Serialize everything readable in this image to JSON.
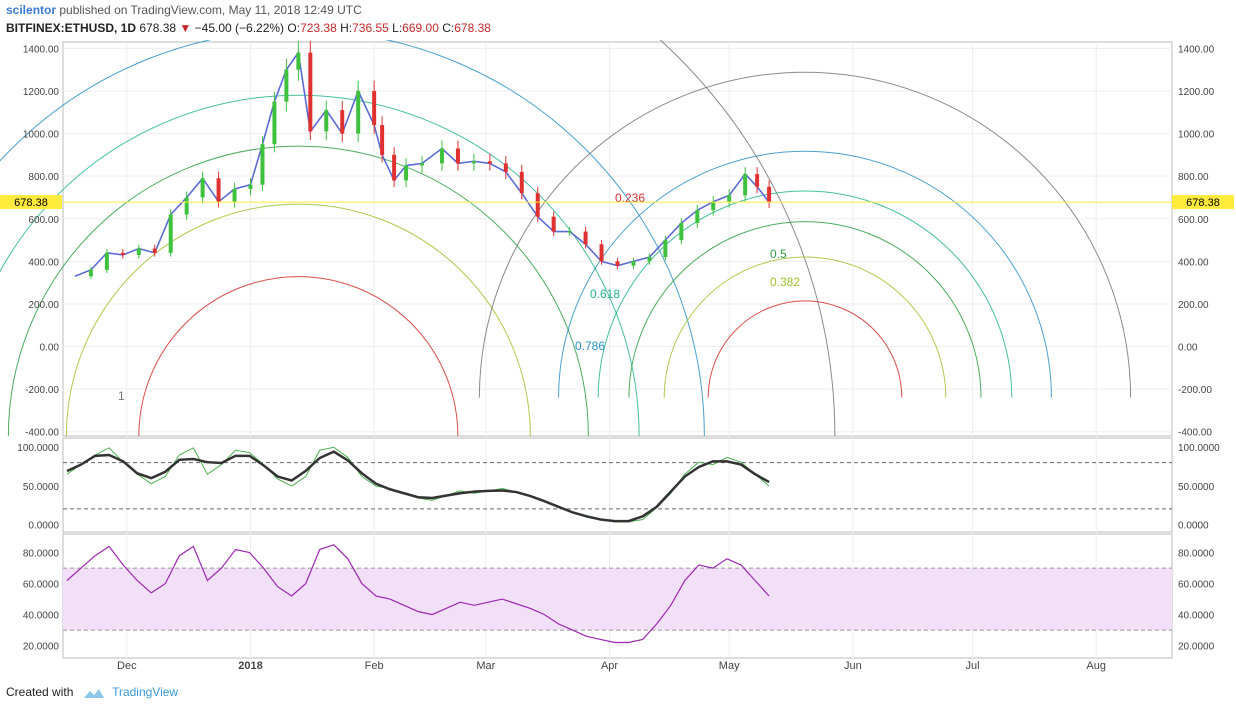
{
  "header": {
    "author": "scilentor",
    "published": "published on TradingView.com, May 11, 2018 12:49 UTC",
    "symbol": "BITFINEX:ETHUSD, 1D",
    "last": "678.38",
    "change": "−45.00 (−6.22%)",
    "o_label": "O:",
    "o": "723.38",
    "h_label": "H:",
    "h": "736.55",
    "l_label": "L:",
    "l": "669.00",
    "c_label": "C:",
    "c": "678.38"
  },
  "footer": {
    "created_with": "Created with",
    "brand": "TradingView"
  },
  "colors": {
    "up": "#3ec23e",
    "down": "#e03131",
    "price_line": "#ffeb3b",
    "rsi": "#9c27b0",
    "stoch_fast": "#4caf50",
    "stoch_slow": "#333333"
  },
  "chart_data": [
    {
      "type": "candlestick",
      "panel": "price",
      "ylim": [
        -420,
        1430
      ],
      "y_ticks": [
        "1400.00",
        "1200.00",
        "1000.00",
        "800.00",
        "600.00",
        "400.00",
        "200.00",
        "0.00",
        "-200.00",
        "-400.00"
      ],
      "x_ticks": [
        "Dec",
        "2018",
        "Feb",
        "Mar",
        "Apr",
        "May",
        "Jun",
        "Jul",
        "Aug"
      ],
      "current_price_label": "678.38",
      "price_series": [
        [
          "2017-11-18",
          330
        ],
        [
          "2017-11-22",
          360
        ],
        [
          "2017-11-26",
          440
        ],
        [
          "2017-11-30",
          430
        ],
        [
          "2017-12-04",
          460
        ],
        [
          "2017-12-08",
          440
        ],
        [
          "2017-12-12",
          620
        ],
        [
          "2017-12-16",
          700
        ],
        [
          "2017-12-20",
          790
        ],
        [
          "2017-12-24",
          680
        ],
        [
          "2017-12-28",
          740
        ],
        [
          "2018-01-01",
          760
        ],
        [
          "2018-01-04",
          950
        ],
        [
          "2018-01-07",
          1150
        ],
        [
          "2018-01-10",
          1300
        ],
        [
          "2018-01-13",
          1380
        ],
        [
          "2018-01-16",
          1010
        ],
        [
          "2018-01-20",
          1110
        ],
        [
          "2018-01-24",
          1000
        ],
        [
          "2018-01-28",
          1200
        ],
        [
          "2018-02-01",
          1040
        ],
        [
          "2018-02-03",
          900
        ],
        [
          "2018-02-06",
          780
        ],
        [
          "2018-02-09",
          850
        ],
        [
          "2018-02-13",
          860
        ],
        [
          "2018-02-18",
          930
        ],
        [
          "2018-02-22",
          860
        ],
        [
          "2018-02-26",
          870
        ],
        [
          "2018-03-02",
          860
        ],
        [
          "2018-03-06",
          820
        ],
        [
          "2018-03-10",
          720
        ],
        [
          "2018-03-14",
          610
        ],
        [
          "2018-03-18",
          540
        ],
        [
          "2018-03-22",
          540
        ],
        [
          "2018-03-26",
          480
        ],
        [
          "2018-03-30",
          400
        ],
        [
          "2018-04-03",
          380
        ],
        [
          "2018-04-07",
          400
        ],
        [
          "2018-04-11",
          420
        ],
        [
          "2018-04-15",
          500
        ],
        [
          "2018-04-19",
          580
        ],
        [
          "2018-04-23",
          640
        ],
        [
          "2018-04-27",
          680
        ],
        [
          "2018-05-01",
          710
        ],
        [
          "2018-05-05",
          810
        ],
        [
          "2018-05-08",
          750
        ],
        [
          "2018-05-11",
          678
        ]
      ],
      "fib_labels": [
        {
          "text": "0.236",
          "color": "#d32f2f"
        },
        {
          "text": "0.382",
          "color": "#9dc22f"
        },
        {
          "text": "0.5",
          "color": "#2e9e45"
        },
        {
          "text": "0.618",
          "color": "#26b58a"
        },
        {
          "text": "0.786",
          "color": "#2a8fc6"
        },
        {
          "text": "1",
          "color": "#777777"
        }
      ]
    },
    {
      "type": "line",
      "panel": "stochastic",
      "ylim": [
        -10,
        112
      ],
      "y_ticks": [
        "100.0000",
        "50.0000",
        "0.0000"
      ],
      "levels": [
        80,
        20
      ]
    },
    {
      "type": "line",
      "panel": "rsi",
      "ylim": [
        12,
        92
      ],
      "y_ticks": [
        "80.0000",
        "60.0000",
        "40.0000",
        "20.0000"
      ],
      "band": [
        30,
        70
      ],
      "series": [
        {
          "values": [
            62,
            70,
            78,
            84,
            72,
            62,
            54,
            60,
            78,
            84,
            62,
            70,
            82,
            80,
            70,
            58,
            52,
            60,
            82,
            85,
            76,
            60,
            52,
            50,
            46,
            42,
            40,
            44,
            48,
            46,
            48,
            50,
            47,
            44,
            40,
            34,
            30,
            26,
            24,
            22,
            22,
            24,
            34,
            46,
            62,
            72,
            70,
            76,
            72,
            62,
            52
          ]
        }
      ]
    }
  ]
}
